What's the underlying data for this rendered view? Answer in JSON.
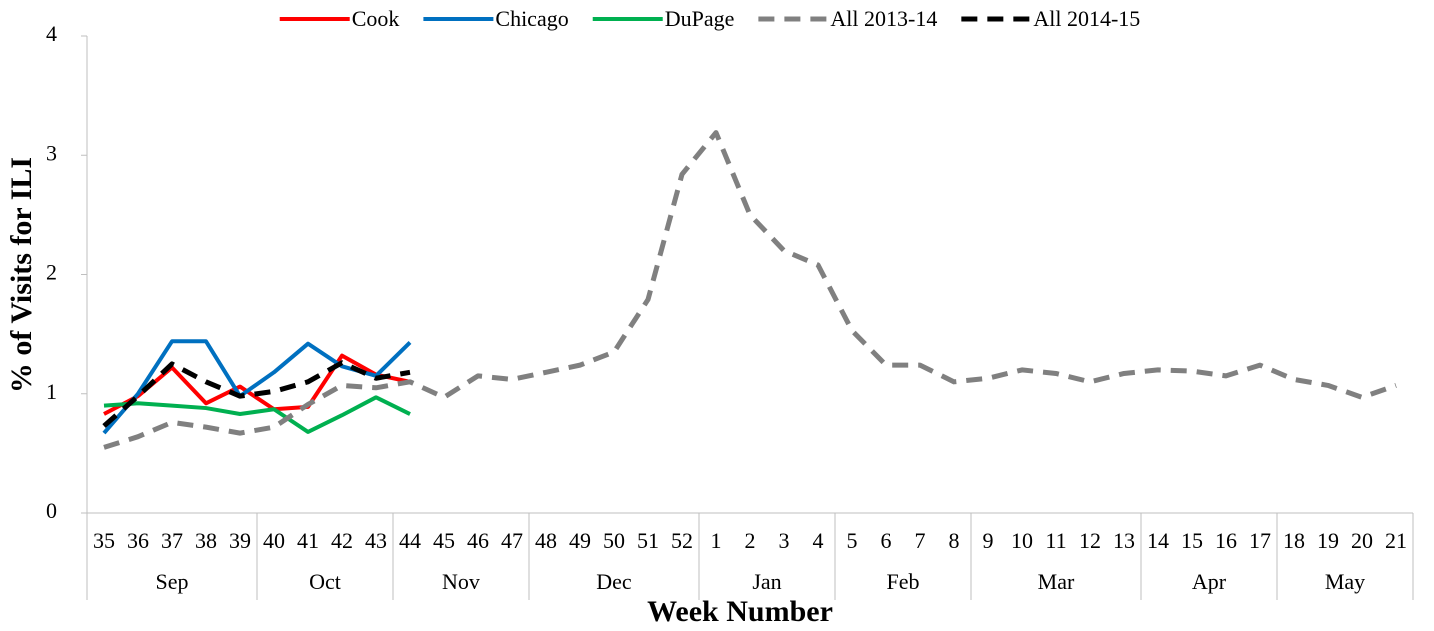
{
  "chart_data": {
    "type": "line",
    "x_label": "Week Number",
    "y_label": "% of Visits for ILI",
    "categories": [
      "35",
      "36",
      "37",
      "38",
      "39",
      "40",
      "41",
      "42",
      "43",
      "44",
      "45",
      "46",
      "47",
      "48",
      "49",
      "50",
      "51",
      "52",
      "1",
      "2",
      "3",
      "4",
      "5",
      "6",
      "7",
      "8",
      "9",
      "10",
      "11",
      "12",
      "13",
      "14",
      "15",
      "16",
      "17",
      "18",
      "19",
      "20",
      "21"
    ],
    "x_groups": [
      {
        "label": "Sep",
        "span": 5
      },
      {
        "label": "Oct",
        "span": 4
      },
      {
        "label": "Nov",
        "span": 4
      },
      {
        "label": "Dec",
        "span": 5
      },
      {
        "label": "Jan",
        "span": 4
      },
      {
        "label": "Feb",
        "span": 4
      },
      {
        "label": "Mar",
        "span": 5
      },
      {
        "label": "Apr",
        "span": 4
      },
      {
        "label": "May",
        "span": 4
      }
    ],
    "ylim": [
      0,
      4
    ],
    "yticks": [
      0,
      1,
      2,
      3,
      4
    ],
    "grid": false,
    "legend": "top",
    "series": [
      {
        "name": "Cook",
        "color": "#ff0000",
        "dashed": false,
        "values": [
          0.83,
          0.98,
          1.22,
          0.92,
          1.06,
          0.87,
          0.89,
          1.32,
          1.16,
          1.1,
          null,
          null,
          null,
          null,
          null,
          null,
          null,
          null,
          null,
          null,
          null,
          null,
          null,
          null,
          null,
          null,
          null,
          null,
          null,
          null,
          null,
          null,
          null,
          null,
          null,
          null,
          null,
          null,
          null
        ]
      },
      {
        "name": "Chicago",
        "color": "#0070c0",
        "dashed": false,
        "values": [
          0.67,
          1.0,
          1.44,
          1.44,
          0.98,
          1.18,
          1.42,
          1.23,
          1.15,
          1.43,
          null,
          null,
          null,
          null,
          null,
          null,
          null,
          null,
          null,
          null,
          null,
          null,
          null,
          null,
          null,
          null,
          null,
          null,
          null,
          null,
          null,
          null,
          null,
          null,
          null,
          null,
          null,
          null,
          null
        ]
      },
      {
        "name": "DuPage",
        "color": "#00b050",
        "dashed": false,
        "values": [
          0.9,
          0.92,
          0.9,
          0.88,
          0.83,
          0.87,
          0.68,
          0.82,
          0.97,
          0.83,
          null,
          null,
          null,
          null,
          null,
          null,
          null,
          null,
          null,
          null,
          null,
          null,
          null,
          null,
          null,
          null,
          null,
          null,
          null,
          null,
          null,
          null,
          null,
          null,
          null,
          null,
          null,
          null,
          null
        ]
      },
      {
        "name": "All 2013-14",
        "color": "#808080",
        "dashed": true,
        "values": [
          0.55,
          0.64,
          0.76,
          0.72,
          0.67,
          0.72,
          0.91,
          1.07,
          1.05,
          1.1,
          0.97,
          1.15,
          1.12,
          1.18,
          1.24,
          1.35,
          1.79,
          2.84,
          3.19,
          2.5,
          2.2,
          2.08,
          1.53,
          1.24,
          1.24,
          1.1,
          1.13,
          1.2,
          1.17,
          1.1,
          1.17,
          1.2,
          1.19,
          1.15,
          1.24,
          1.12,
          1.07,
          0.97,
          1.07
        ]
      },
      {
        "name": "All 2014-15",
        "color": "#000000",
        "dashed": true,
        "values": [
          0.73,
          0.98,
          1.25,
          1.1,
          0.98,
          1.02,
          1.1,
          1.26,
          1.13,
          1.18,
          null,
          null,
          null,
          null,
          null,
          null,
          null,
          null,
          null,
          null,
          null,
          null,
          null,
          null,
          null,
          null,
          null,
          null,
          null,
          null,
          null,
          null,
          null,
          null,
          null,
          null,
          null,
          null,
          null
        ]
      }
    ]
  }
}
